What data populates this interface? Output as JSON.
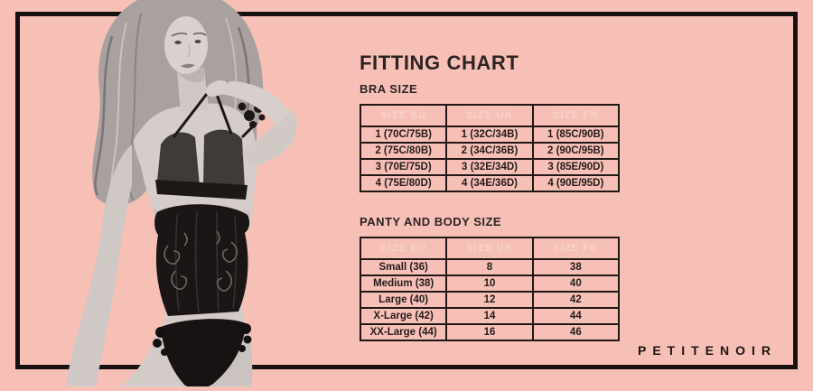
{
  "theme": {
    "background": "#f6c0b7",
    "frame_color": "#171010",
    "heading_color": "#2c2322",
    "table_border_color": "#211816",
    "table_header_text_color": "#f8d2ca"
  },
  "header": {
    "title": "FITTING CHART"
  },
  "bra_section": {
    "heading": "BRA SIZE",
    "table": {
      "headers": [
        "SIZE EU",
        "SIZE UK",
        "SIZE FR"
      ],
      "rows": [
        [
          "1 (70C/75B)",
          "1 (32C/34B)",
          "1 (85C/90B)"
        ],
        [
          "2 (75C/80B)",
          "2 (34C/36B)",
          "2 (90C/95B)"
        ],
        [
          "3 (70E/75D)",
          "3 (32E/34D)",
          "3 (85E/90D)"
        ],
        [
          "4 (75E/80D)",
          "4 (34E/36D)",
          "4 (90E/95D)"
        ]
      ]
    }
  },
  "panty_section": {
    "heading": "PANTY AND BODY SIZE",
    "table": {
      "headers": [
        "SIZE EU",
        "SIZE UK",
        "SIZE FR"
      ],
      "rows": [
        [
          "Small (36)",
          "8",
          "38"
        ],
        [
          "Medium (38)",
          "10",
          "40"
        ],
        [
          "Large (40)",
          "12",
          "42"
        ],
        [
          "X-Large (42)",
          "14",
          "44"
        ],
        [
          "XX-Large (44)",
          "16",
          "46"
        ]
      ]
    }
  },
  "brand": {
    "logo_text": "PETITENOIR"
  }
}
